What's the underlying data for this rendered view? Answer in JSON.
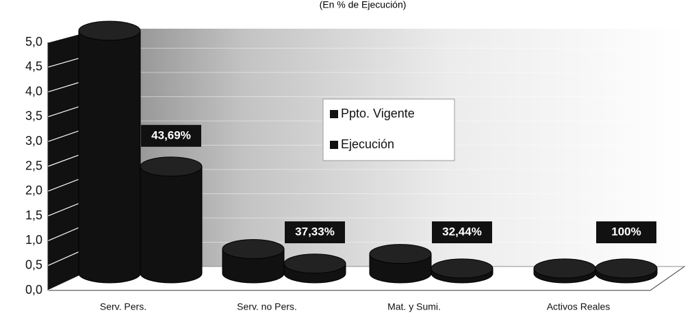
{
  "chart_data": {
    "type": "bar3d",
    "title": "(En % de Ejecución)",
    "categories": [
      "Serv. Pers.",
      "Serv. no Pers.",
      "Mat. y Sumi.",
      "Activos Reales"
    ],
    "series": [
      {
        "name": "Ppto. Vigente",
        "color": "#111111",
        "values": [
          5.0,
          0.5,
          0.4,
          0.1
        ]
      },
      {
        "name": "Ejecución",
        "color": "#111111",
        "values": [
          2.2,
          0.2,
          0.1,
          0.1
        ]
      }
    ],
    "execution_labels": [
      "43,69%",
      "37,33%",
      "32,44%",
      "100%"
    ],
    "ylim": [
      0,
      5
    ],
    "yticks": [
      {
        "value": 0,
        "label": "0,0"
      },
      {
        "value": 0.5,
        "label": "0,5"
      },
      {
        "value": 1,
        "label": "1,0"
      },
      {
        "value": 1.5,
        "label": "1,5"
      },
      {
        "value": 2,
        "label": "2,0"
      },
      {
        "value": 2.5,
        "label": "2,5"
      },
      {
        "value": 3,
        "label": "3,0"
      },
      {
        "value": 3.5,
        "label": "3,5"
      },
      {
        "value": 4,
        "label": "4,0"
      },
      {
        "value": 4.5,
        "label": "4,5"
      },
      {
        "value": 5,
        "label": "5,0"
      }
    ],
    "grid": true,
    "legend": "center"
  }
}
